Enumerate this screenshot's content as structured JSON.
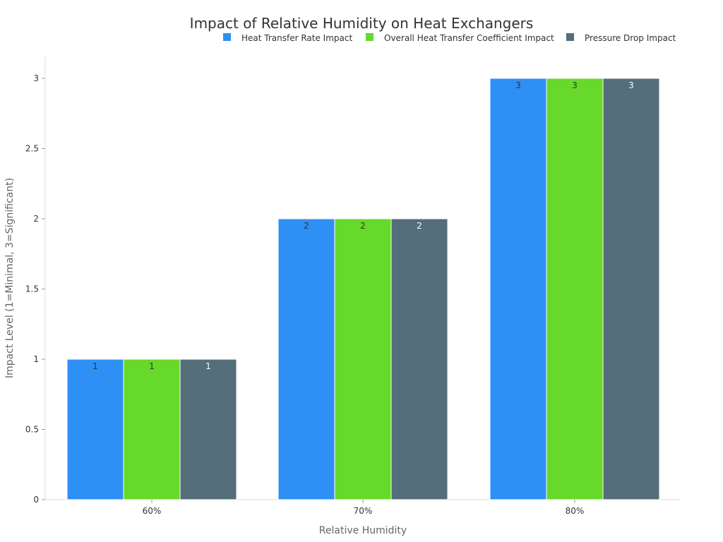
{
  "chart_data": {
    "type": "bar",
    "title": "Impact of Relative Humidity on Heat Exchangers",
    "xlabel": "Relative Humidity",
    "ylabel": "Impact Level (1=Minimal, 3=Significant)",
    "categories": [
      "60%",
      "70%",
      "80%"
    ],
    "ylim": [
      0,
      3.15
    ],
    "yticks": [
      "0",
      "0.5",
      "1",
      "1.5",
      "2",
      "2.5",
      "3"
    ],
    "grid": false,
    "legend_position": "top-right",
    "series": [
      {
        "name": "Heat Transfer Rate Impact",
        "values": [
          1,
          2,
          3
        ],
        "color": "#2e90f5",
        "label_color": "#333333"
      },
      {
        "name": "Overall Heat Transfer Coefficient Impact",
        "values": [
          1,
          2,
          3
        ],
        "color": "#66d92a",
        "label_color": "#333333"
      },
      {
        "name": "Pressure Drop Impact",
        "values": [
          1,
          2,
          3
        ],
        "color": "#546e7a",
        "label_color": "#ffffff"
      }
    ]
  }
}
